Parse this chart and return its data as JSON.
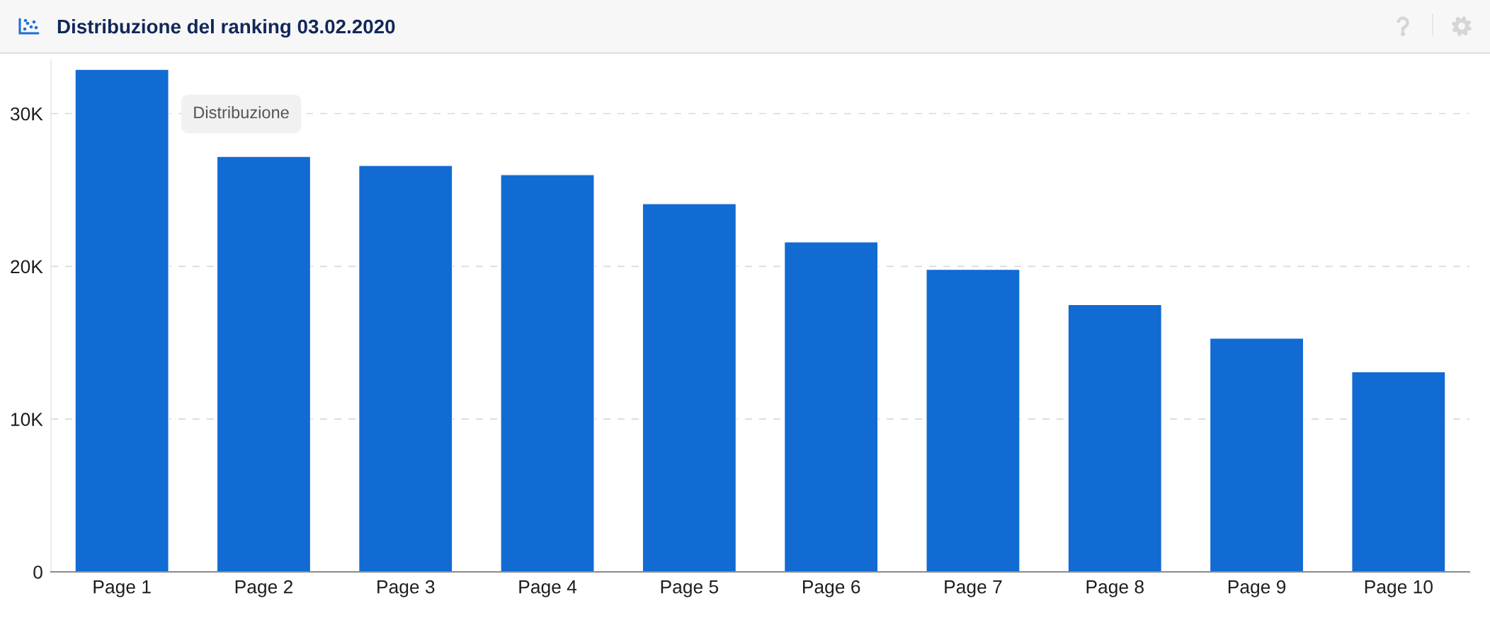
{
  "chart_data": {
    "type": "bar",
    "title": "Distribuzione del ranking 03.02.2020",
    "categories": [
      "Page 1",
      "Page 2",
      "Page 3",
      "Page 4",
      "Page 5",
      "Page 6",
      "Page 7",
      "Page 8",
      "Page 9",
      "Page 10"
    ],
    "values": [
      32900,
      27200,
      26600,
      26000,
      24100,
      21600,
      19800,
      17500,
      15300,
      13100
    ],
    "color": "#126ad3",
    "ylim": [
      0,
      33500
    ],
    "yticks": [
      0,
      {
        "value": 10000,
        "label": "10K"
      },
      {
        "value": 20000,
        "label": "20K"
      },
      {
        "value": 30000,
        "label": "30K"
      }
    ],
    "grid": "y",
    "annotations": [
      "Distribuzione"
    ]
  }
}
